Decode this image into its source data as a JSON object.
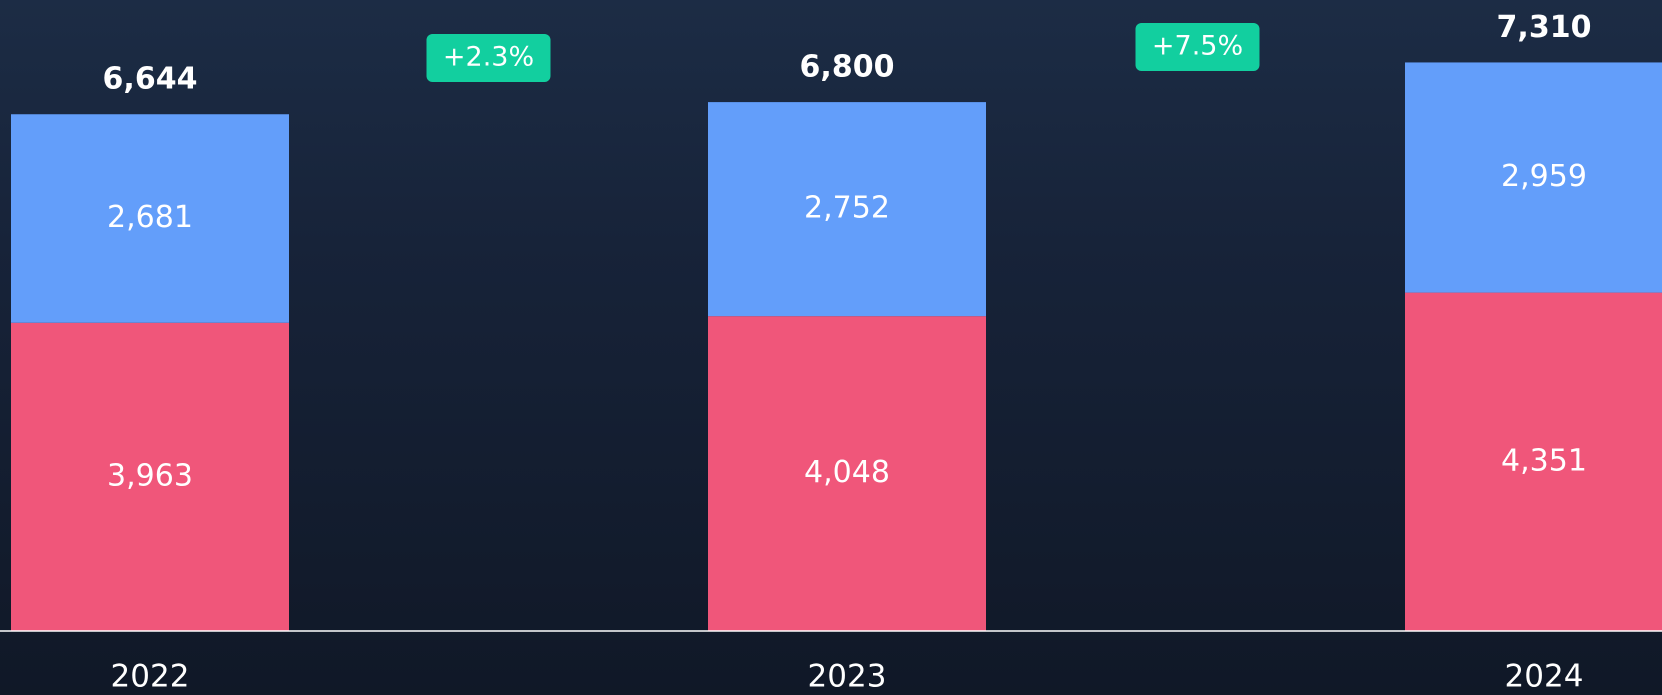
{
  "chart_data": {
    "type": "stacked_bar",
    "categories": [
      "2022",
      "2023",
      "2024"
    ],
    "series": [
      {
        "color": "#f0567a",
        "values": [
          3963,
          4048,
          4351
        ],
        "value_labels": [
          "3,963",
          "4,048",
          "4,351"
        ]
      },
      {
        "color": "#639efa",
        "values": [
          2681,
          2752,
          2959
        ],
        "value_labels": [
          "2,681",
          "2,752",
          "2,959"
        ]
      }
    ],
    "totals": [
      6644,
      6800,
      7310
    ],
    "total_labels": [
      "6,644",
      "6,800",
      "7,310"
    ],
    "annotations": [
      "+2.3%",
      "+7.5%"
    ],
    "annotation_color": "#12cf9f",
    "ylim": [
      0,
      8100
    ]
  }
}
